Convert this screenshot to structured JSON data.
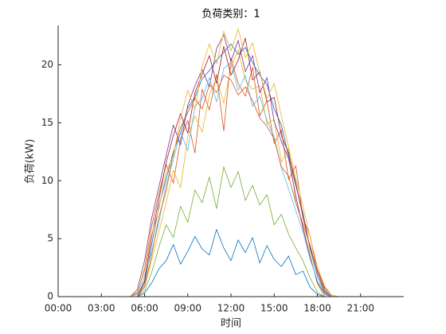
{
  "chart_data": {
    "type": "line",
    "title": "负荷类别：1",
    "xlabel": "时间",
    "ylabel": "负荷(kW)",
    "x": [
      0,
      5,
      5.5,
      6,
      6.5,
      7,
      7.5,
      8,
      8.5,
      9,
      9.5,
      10,
      10.5,
      11,
      11.5,
      12,
      12.5,
      13,
      13.5,
      14,
      14.5,
      15,
      15.5,
      16,
      16.5,
      17,
      17.5,
      18,
      18.5,
      19,
      19.5,
      20,
      24
    ],
    "xlim": [
      0,
      24
    ],
    "xticks": [
      {
        "value": 0,
        "label": "00:00"
      },
      {
        "value": 3,
        "label": "03:00"
      },
      {
        "value": 6,
        "label": "06:00"
      },
      {
        "value": 9,
        "label": "09:00"
      },
      {
        "value": 12,
        "label": "12:00"
      },
      {
        "value": 15,
        "label": "15:00"
      },
      {
        "value": 18,
        "label": "18:00"
      },
      {
        "value": 21,
        "label": "21:00"
      }
    ],
    "ylim": [
      0,
      23.4
    ],
    "yticks": [
      0,
      5,
      10,
      15,
      20
    ],
    "grid": false,
    "series": [
      {
        "color": "#0072BD",
        "values": [
          0,
          0,
          0,
          1.2,
          4.5,
          7.8,
          10.2,
          12.5,
          14.1,
          16.3,
          17.2,
          18.8,
          19.5,
          20.4,
          21.1,
          21.8,
          20.9,
          21.5,
          20.2,
          19.1,
          18.3,
          16.2,
          14.8,
          12.1,
          9.6,
          7.2,
          4.1,
          1.8,
          0.4,
          0,
          0,
          0,
          0
        ]
      },
      {
        "color": "#D95319",
        "values": [
          0,
          0,
          0.3,
          2.4,
          6.1,
          8.9,
          11.4,
          9.8,
          13.6,
          15.2,
          12.4,
          17.9,
          16.1,
          19.2,
          14.3,
          20.6,
          18.4,
          17.3,
          19.8,
          15.6,
          16.9,
          13.2,
          14.4,
          10.1,
          11.3,
          6.8,
          5.2,
          2.1,
          0.6,
          0,
          0,
          0,
          0
        ]
      },
      {
        "color": "#EDB120",
        "values": [
          0,
          0,
          0,
          0.8,
          3.2,
          5.6,
          8.1,
          10.9,
          9.4,
          13.8,
          15.6,
          14.2,
          17.4,
          18.9,
          16.7,
          19.8,
          21.3,
          18.6,
          17.9,
          18.2,
          14.9,
          15.3,
          11.6,
          12.8,
          8.2,
          6.1,
          3.6,
          1.1,
          0,
          0,
          0,
          0,
          0
        ]
      },
      {
        "color": "#7E2F8E",
        "values": [
          0,
          0,
          0.6,
          3.1,
          6.8,
          9.5,
          12.2,
          14.8,
          13.1,
          16.5,
          18.2,
          19.6,
          18.1,
          21.4,
          22.6,
          20.3,
          22.1,
          19.4,
          20.8,
          17.6,
          18.9,
          15.1,
          13.4,
          11.9,
          8.7,
          5.9,
          3.4,
          1.2,
          0.2,
          0,
          0,
          0,
          0
        ]
      },
      {
        "color": "#77AC30",
        "values": [
          0,
          0,
          0,
          0.5,
          2.1,
          4.3,
          6.2,
          5.1,
          7.8,
          6.4,
          9.2,
          8.1,
          10.3,
          7.6,
          11.2,
          9.4,
          10.8,
          8.3,
          9.6,
          7.9,
          8.8,
          6.2,
          7.1,
          5.4,
          4.2,
          3.1,
          1.6,
          0.4,
          0,
          0,
          0,
          0,
          0
        ]
      },
      {
        "color": "#4DBEEE",
        "values": [
          0,
          0,
          0.2,
          1.8,
          3.9,
          6.4,
          9.7,
          11.8,
          14.2,
          12.6,
          16.4,
          17.1,
          18.9,
          16.8,
          19.7,
          20.2,
          17.8,
          19.1,
          16.4,
          17.3,
          15.2,
          13.8,
          11.1,
          9.3,
          7.4,
          5.6,
          3.2,
          1.4,
          0.3,
          0,
          0,
          0,
          0
        ]
      },
      {
        "color": "#A2142F",
        "values": [
          0,
          0,
          0,
          1.4,
          5.2,
          8.4,
          11.6,
          13.9,
          15.8,
          14.1,
          17.6,
          19.2,
          20.8,
          18.4,
          21.6,
          19.1,
          20.4,
          22.3,
          18.7,
          19.4,
          16.8,
          17.2,
          13.9,
          12.4,
          9.8,
          6.9,
          4.2,
          2.3,
          0.8,
          0.1,
          0,
          0,
          0
        ]
      },
      {
        "color": "#0072BD",
        "values": [
          0,
          0,
          0,
          0.3,
          1.2,
          2.4,
          3.1,
          4.5,
          2.8,
          3.9,
          5.2,
          4.1,
          3.6,
          5.8,
          4.2,
          3.1,
          4.9,
          3.8,
          5.1,
          2.9,
          4.4,
          3.2,
          2.6,
          3.5,
          1.9,
          2.2,
          0.8,
          0.2,
          0,
          0,
          0,
          0,
          0
        ]
      },
      {
        "color": "#D95319",
        "values": [
          0,
          0,
          0,
          0.9,
          3.6,
          6.9,
          9.1,
          12.4,
          14.6,
          15.9,
          17.1,
          16.2,
          18.3,
          17.6,
          19.1,
          18.7,
          17.4,
          18.1,
          16.9,
          15.4,
          14.7,
          13.6,
          11.2,
          10.4,
          8.1,
          6.3,
          4.4,
          2.1,
          0.5,
          0,
          0,
          0,
          0
        ]
      },
      {
        "color": "#EDB120",
        "values": [
          0,
          0,
          0.4,
          2.2,
          5.4,
          7.6,
          10.8,
          12.1,
          15.4,
          17.8,
          16.2,
          19.9,
          21.8,
          20.1,
          22.9,
          21.2,
          23.1,
          20.6,
          21.9,
          19.3,
          17.1,
          18.4,
          15.6,
          12.9,
          10.2,
          7.8,
          5.1,
          2.6,
          0.9,
          0.1,
          0,
          0,
          0
        ]
      }
    ]
  }
}
